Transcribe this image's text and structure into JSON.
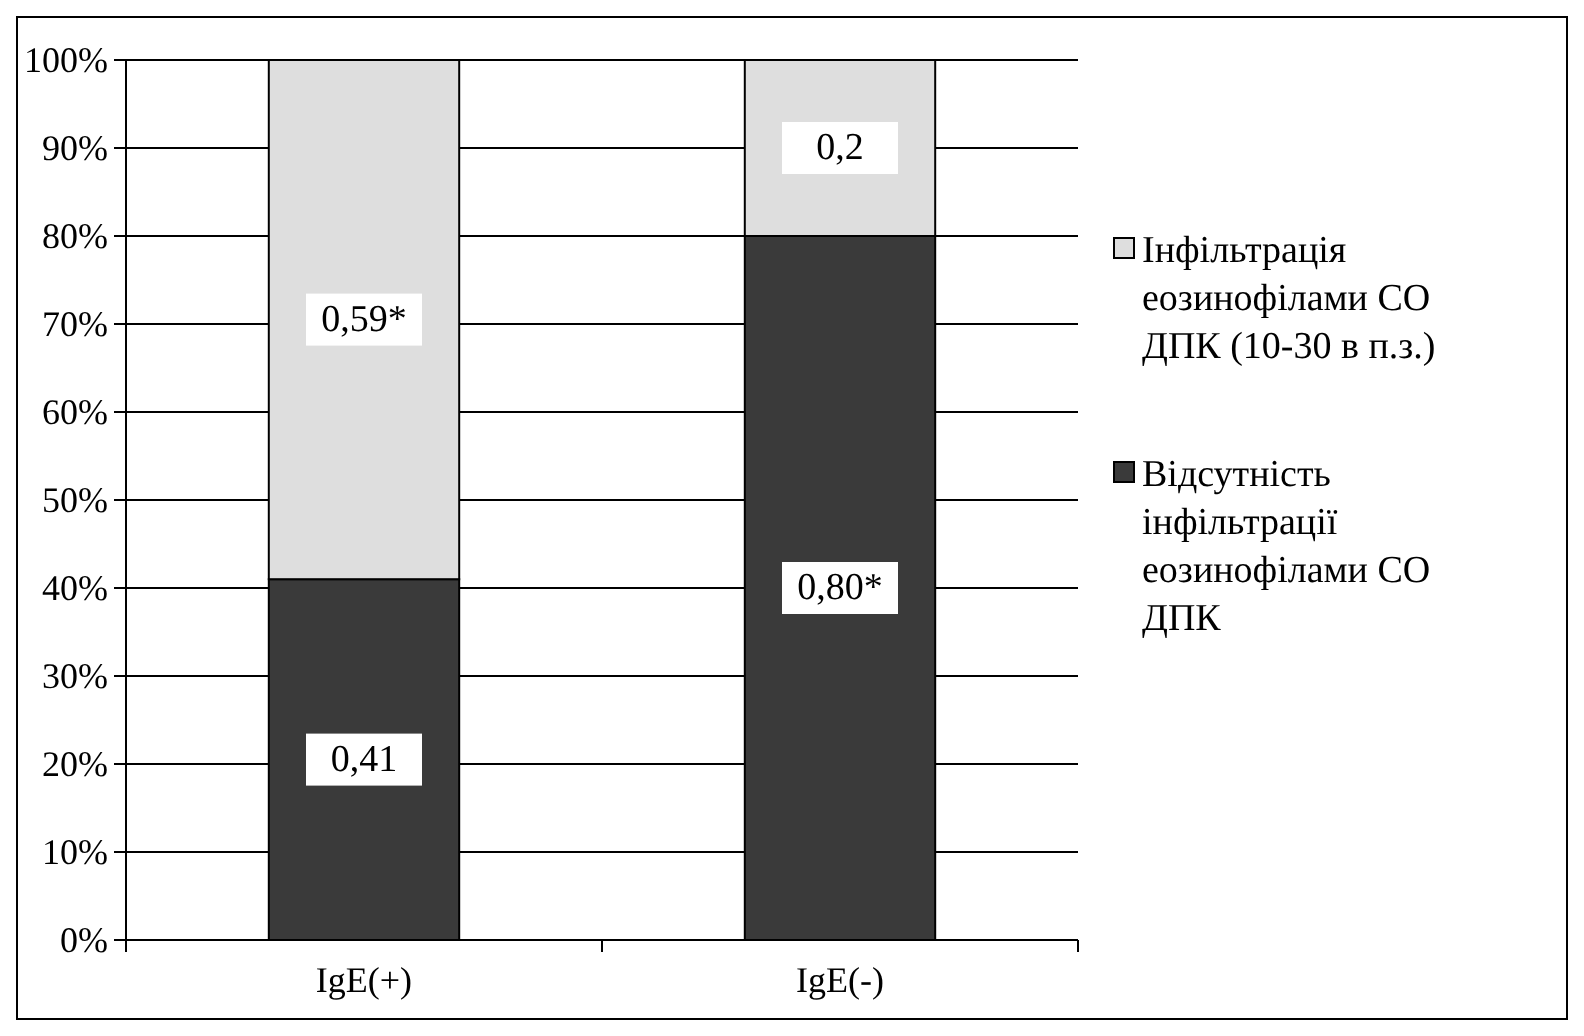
{
  "chart_data": {
    "type": "bar",
    "stacked": true,
    "categories": [
      "IgE(+)",
      "IgE(-)"
    ],
    "series": [
      {
        "name": "Відсутність інфільтрації еозинофілами СО ДПК",
        "color": "#3a3a3a",
        "values": [
          0.41,
          0.8
        ],
        "value_labels": [
          "0,41",
          "0,80*"
        ]
      },
      {
        "name": "Інфільтрація еозинофілами СО ДПК (10-30 в п.з.)",
        "color": "#dedede",
        "values": [
          0.59,
          0.2
        ],
        "value_labels": [
          "0,59*",
          "0,2"
        ]
      }
    ],
    "ylim": [
      0,
      1
    ],
    "yticks": [
      {
        "value": 0,
        "label": "0%"
      },
      {
        "value": 0.1,
        "label": "10%"
      },
      {
        "value": 0.2,
        "label": "20%"
      },
      {
        "value": 0.3,
        "label": "30%"
      },
      {
        "value": 0.4,
        "label": "40%"
      },
      {
        "value": 0.5,
        "label": "50%"
      },
      {
        "value": 0.6,
        "label": "60%"
      },
      {
        "value": 0.7,
        "label": "70%"
      },
      {
        "value": 0.8,
        "label": "80%"
      },
      {
        "value": 0.9,
        "label": "90%"
      },
      {
        "value": 1,
        "label": "100%"
      }
    ],
    "grid": "y",
    "legend": "right"
  }
}
